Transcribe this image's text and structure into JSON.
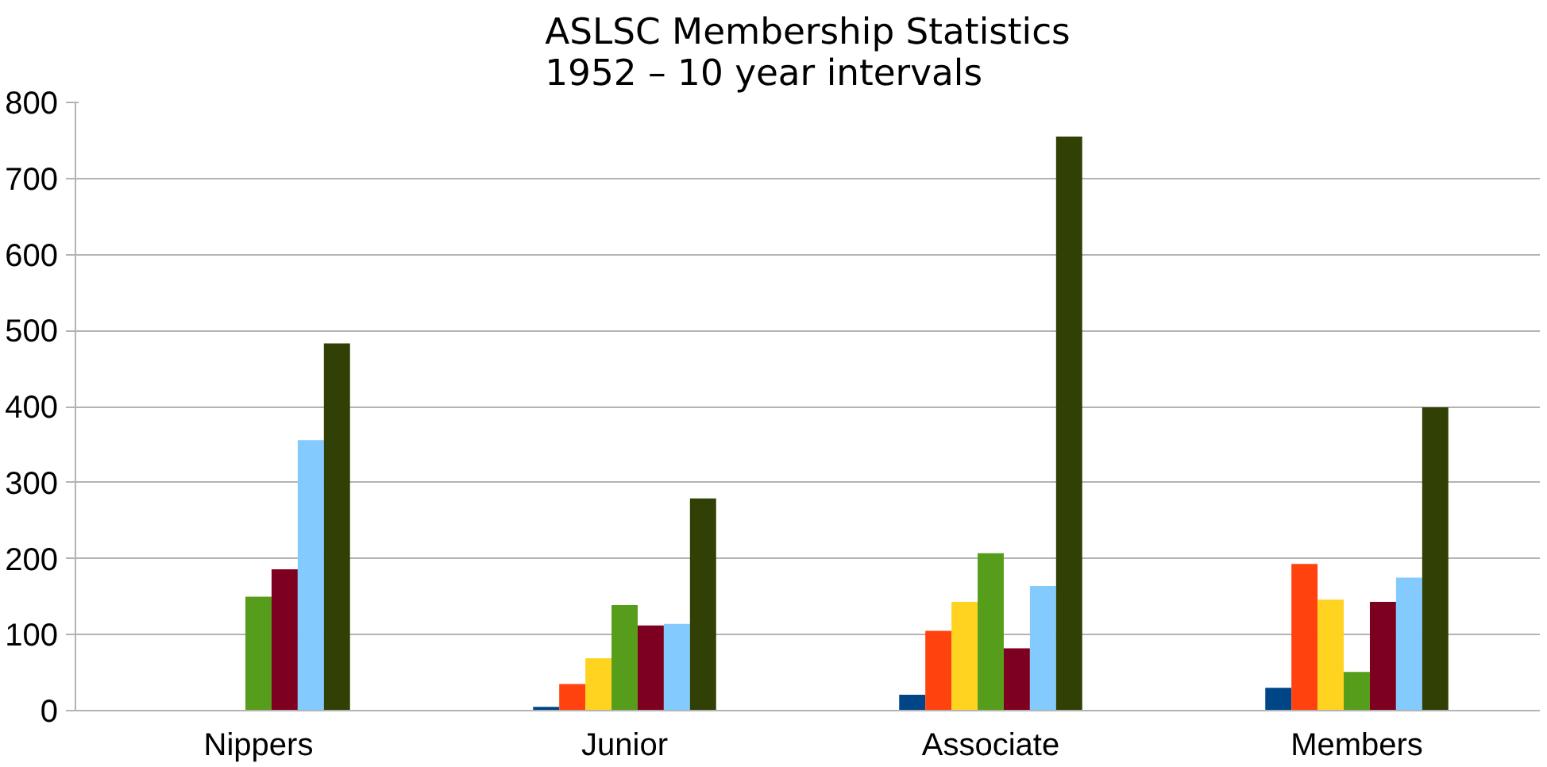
{
  "chart_data": {
    "type": "bar",
    "title": "ASLSC Membership Statistics\n1952 – 10 year intervals",
    "categories": [
      "Nippers",
      "Junior",
      "Associate",
      "Members"
    ],
    "series": [
      {
        "color": "#004586",
        "values": [
          0,
          5,
          21,
          30
        ]
      },
      {
        "color": "#ff420e",
        "values": [
          0,
          35,
          105,
          193
        ]
      },
      {
        "color": "#ffd320",
        "values": [
          0,
          69,
          143,
          146
        ]
      },
      {
        "color": "#579d1c",
        "values": [
          150,
          139,
          207,
          51
        ]
      },
      {
        "color": "#7e0021",
        "values": [
          186,
          112,
          82,
          143
        ]
      },
      {
        "color": "#83caff",
        "values": [
          356,
          114,
          164,
          175
        ]
      },
      {
        "color": "#314004",
        "values": [
          483,
          279,
          755,
          399
        ]
      }
    ],
    "ylim": [
      0,
      800
    ],
    "yticks": [
      0,
      100,
      200,
      300,
      400,
      500,
      600,
      700,
      800
    ],
    "grid": "y"
  }
}
